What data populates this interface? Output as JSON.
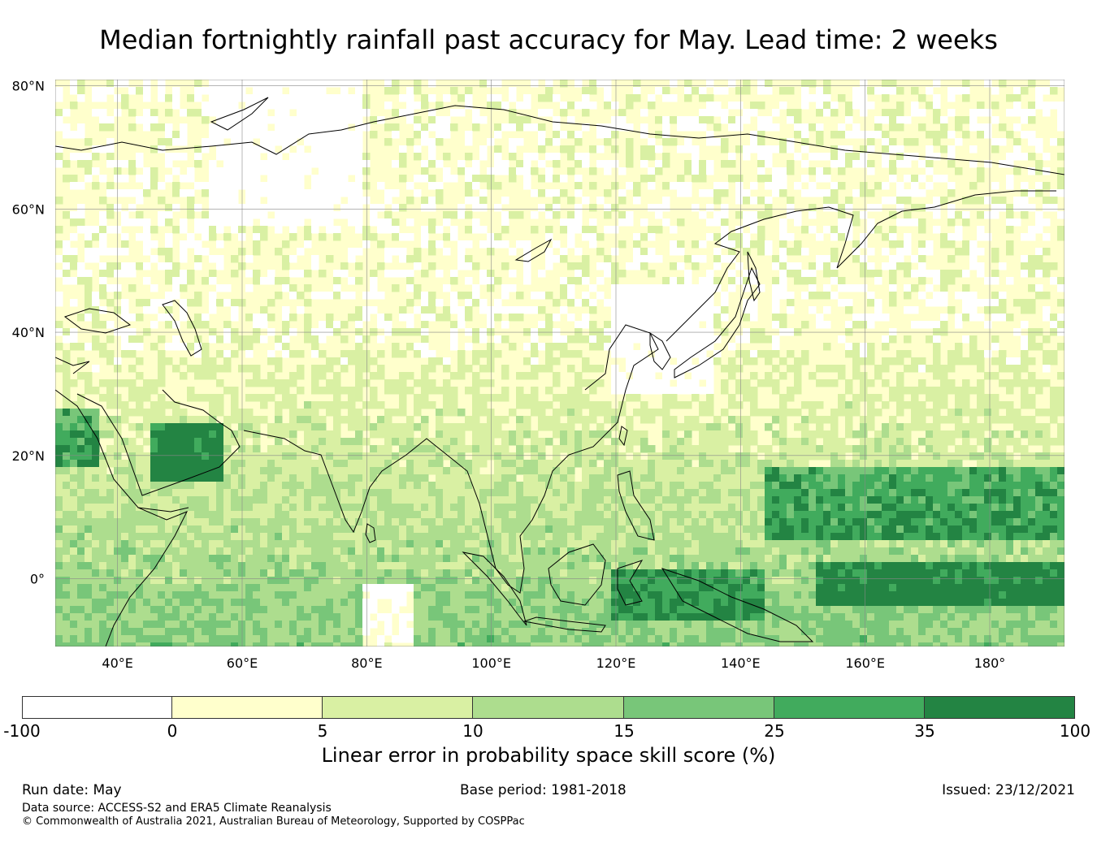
{
  "title": "Median fortnightly rainfall past accuracy for May. Lead time: 2 weeks",
  "map": {
    "lat_labels": [
      "80°N",
      "60°N",
      "40°N",
      "20°N",
      "0°"
    ],
    "lon_labels": [
      "40°E",
      "60°E",
      "80°E",
      "100°E",
      "120°E",
      "140°E",
      "160°E",
      "180°"
    ],
    "extent": {
      "lon_min": 30,
      "lon_max": 192,
      "lat_min": -11,
      "lat_max": 81
    }
  },
  "colorbar": {
    "ticks": [
      "-100",
      "0",
      "5",
      "10",
      "15",
      "25",
      "35",
      "100"
    ],
    "colors": [
      "#ffffff",
      "#ffffcc",
      "#d9f0a3",
      "#addd8e",
      "#78c679",
      "#41ab5d",
      "#238443"
    ],
    "title": "Linear error in probability space skill score (%)"
  },
  "footer": {
    "run_date": "Run date: May",
    "base_period": "Base period: 1981-2018",
    "issued": "Issued: 23/12/2021",
    "data_source": "Data source: ACCESS-S2 and ERA5 Climate Reanalysis",
    "copyright": "© Commonwealth of Australia 2021, Australian Bureau of Meteorology, Supported by COSPPac"
  }
}
